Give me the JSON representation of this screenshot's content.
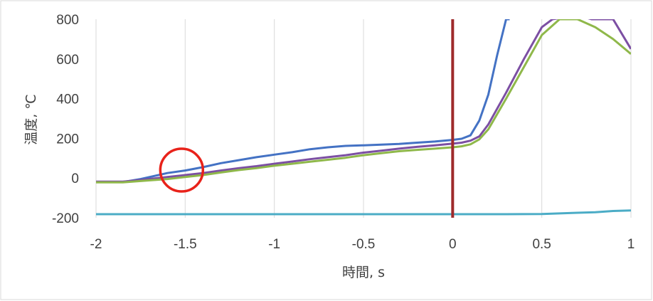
{
  "chart_data": {
    "type": "line",
    "title": "",
    "xlabel": "時間, s",
    "ylabel": "温度, ℃",
    "xlim": [
      -2,
      1
    ],
    "ylim": [
      -200,
      800
    ],
    "x_ticks": [
      "-2",
      "-1.5",
      "-1",
      "-0.5",
      "0",
      "0.5",
      "1"
    ],
    "y_ticks": [
      "-200",
      "0",
      "200",
      "400",
      "600",
      "800"
    ],
    "grid": "vertical",
    "legend": "none",
    "series": [
      {
        "color": "#4472c4",
        "x": [
          -2,
          -1.85,
          -1.75,
          -1.6,
          -1.5,
          -1.4,
          -1.3,
          -1.2,
          -1.1,
          -1.0,
          -0.9,
          -0.8,
          -0.7,
          -0.6,
          -0.5,
          -0.4,
          -0.3,
          -0.2,
          -0.1,
          0,
          0.05,
          0.1,
          0.15,
          0.2,
          0.25,
          0.3,
          0.32
        ],
        "y": [
          -20,
          -20,
          -5,
          25,
          38,
          55,
          75,
          90,
          105,
          118,
          130,
          145,
          155,
          162,
          165,
          168,
          172,
          178,
          184,
          192,
          198,
          215,
          290,
          420,
          620,
          800,
          800
        ]
      },
      {
        "color": "#7c4fa3",
        "x": [
          -2,
          -1.85,
          -1.75,
          -1.6,
          -1.5,
          -1.4,
          -1.3,
          -1.2,
          -1.1,
          -1.0,
          -0.9,
          -0.8,
          -0.7,
          -0.6,
          -0.5,
          -0.4,
          -0.3,
          -0.2,
          -0.1,
          0,
          0.05,
          0.1,
          0.15,
          0.2,
          0.3,
          0.4,
          0.5,
          0.56,
          0.7,
          0.78,
          0.9,
          1.0
        ],
        "y": [
          -18,
          -18,
          -10,
          5,
          15,
          25,
          38,
          50,
          60,
          72,
          83,
          95,
          105,
          115,
          128,
          138,
          148,
          157,
          165,
          173,
          178,
          188,
          210,
          270,
          430,
          600,
          760,
          800,
          820,
          800,
          800,
          650
        ]
      },
      {
        "color": "#8fb84a",
        "x": [
          -2,
          -1.85,
          -1.75,
          -1.6,
          -1.5,
          -1.4,
          -1.3,
          -1.2,
          -1.1,
          -1.0,
          -0.9,
          -0.8,
          -0.7,
          -0.6,
          -0.5,
          -0.4,
          -0.3,
          -0.2,
          -0.1,
          0,
          0.05,
          0.1,
          0.15,
          0.2,
          0.3,
          0.4,
          0.5,
          0.6,
          0.7,
          0.8,
          0.9,
          1.0
        ],
        "y": [
          -22,
          -22,
          -15,
          -5,
          5,
          15,
          28,
          40,
          50,
          62,
          72,
          82,
          92,
          102,
          115,
          125,
          135,
          142,
          148,
          155,
          160,
          170,
          195,
          245,
          400,
          560,
          720,
          800,
          800,
          760,
          700,
          625
        ]
      },
      {
        "color": "#4bacc6",
        "x": [
          -2,
          -1.5,
          -1,
          -0.5,
          0,
          0.3,
          0.5,
          0.6,
          0.7,
          0.8,
          0.9,
          1.0
        ],
        "y": [
          -182,
          -182,
          -182,
          -182,
          -182,
          -182,
          -181,
          -178,
          -175,
          -172,
          -166,
          -163
        ]
      }
    ],
    "reference_line": {
      "x": 0,
      "color": "#9e2a2b"
    },
    "annotation_circle": {
      "x": -1.52,
      "y": 40,
      "color": "#e8221a"
    }
  }
}
